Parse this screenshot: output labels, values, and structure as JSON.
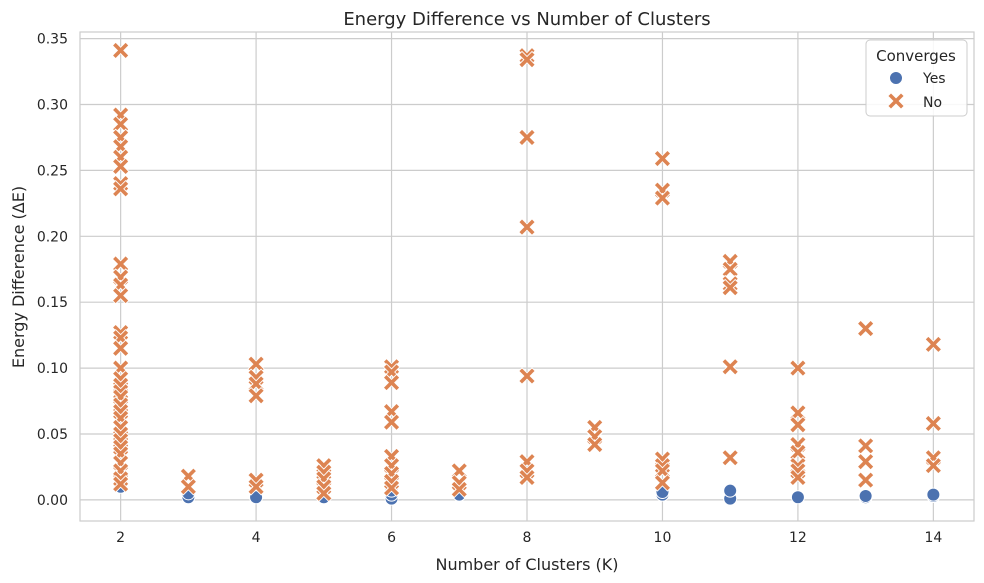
{
  "chart_data": {
    "type": "scatter",
    "title": "Energy Difference vs Number of Clusters",
    "xlabel": "Number of Clusters (K)",
    "ylabel": "Energy Difference (ΔE)",
    "xlim": [
      1.4,
      14.6
    ],
    "ylim": [
      -0.016,
      0.355
    ],
    "xticks": [
      2,
      4,
      6,
      8,
      10,
      12,
      14
    ],
    "yticks": [
      0.0,
      0.05,
      0.1,
      0.15,
      0.2,
      0.25,
      0.3,
      0.35
    ],
    "xtick_labels": [
      "2",
      "4",
      "6",
      "8",
      "10",
      "12",
      "14"
    ],
    "ytick_labels": [
      "0.00",
      "0.05",
      "0.10",
      "0.15",
      "0.20",
      "0.25",
      "0.30",
      "0.35"
    ],
    "grid": true,
    "legend": {
      "title": "Converges",
      "position": "top-right"
    },
    "series": [
      {
        "name": "Yes",
        "marker": "circle",
        "color": "#4c72b0",
        "points": [
          [
            2,
            0.01
          ],
          [
            3,
            0.002
          ],
          [
            3,
            0.005
          ],
          [
            4,
            0.002
          ],
          [
            5,
            0.002
          ],
          [
            6,
            0.001
          ],
          [
            6,
            0.004
          ],
          [
            6,
            0.007
          ],
          [
            7,
            0.004
          ],
          [
            10,
            0.004
          ],
          [
            10,
            0.006
          ],
          [
            11,
            0.001
          ],
          [
            11,
            0.007
          ],
          [
            12,
            0.002
          ],
          [
            13,
            0.002
          ],
          [
            13,
            0.003
          ],
          [
            14,
            0.003
          ],
          [
            14,
            0.004
          ]
        ]
      },
      {
        "name": "No",
        "marker": "x",
        "color": "#dd8452",
        "points": [
          [
            2,
            0.341
          ],
          [
            2,
            0.292
          ],
          [
            2,
            0.285
          ],
          [
            2,
            0.275
          ],
          [
            2,
            0.268
          ],
          [
            2,
            0.26
          ],
          [
            2,
            0.253
          ],
          [
            2,
            0.24
          ],
          [
            2,
            0.236
          ],
          [
            2,
            0.179
          ],
          [
            2,
            0.169
          ],
          [
            2,
            0.163
          ],
          [
            2,
            0.155
          ],
          [
            2,
            0.127
          ],
          [
            2,
            0.123
          ],
          [
            2,
            0.115
          ],
          [
            2,
            0.1
          ],
          [
            2,
            0.092
          ],
          [
            2,
            0.087
          ],
          [
            2,
            0.082
          ],
          [
            2,
            0.078
          ],
          [
            2,
            0.072
          ],
          [
            2,
            0.067
          ],
          [
            2,
            0.062
          ],
          [
            2,
            0.055
          ],
          [
            2,
            0.05
          ],
          [
            2,
            0.045
          ],
          [
            2,
            0.04
          ],
          [
            2,
            0.035
          ],
          [
            2,
            0.028
          ],
          [
            2,
            0.022
          ],
          [
            2,
            0.016
          ],
          [
            2,
            0.012
          ],
          [
            3,
            0.018
          ],
          [
            3,
            0.01
          ],
          [
            4,
            0.103
          ],
          [
            4,
            0.093
          ],
          [
            4,
            0.088
          ],
          [
            4,
            0.079
          ],
          [
            4,
            0.015
          ],
          [
            4,
            0.01
          ],
          [
            5,
            0.026
          ],
          [
            5,
            0.021
          ],
          [
            5,
            0.016
          ],
          [
            5,
            0.01
          ],
          [
            5,
            0.005
          ],
          [
            6,
            0.101
          ],
          [
            6,
            0.097
          ],
          [
            6,
            0.089
          ],
          [
            6,
            0.067
          ],
          [
            6,
            0.059
          ],
          [
            6,
            0.033
          ],
          [
            6,
            0.026
          ],
          [
            6,
            0.02
          ],
          [
            6,
            0.014
          ],
          [
            6,
            0.009
          ],
          [
            7,
            0.022
          ],
          [
            7,
            0.013
          ],
          [
            7,
            0.008
          ],
          [
            8,
            0.337
          ],
          [
            8,
            0.334
          ],
          [
            8,
            0.275
          ],
          [
            8,
            0.207
          ],
          [
            8,
            0.094
          ],
          [
            8,
            0.029
          ],
          [
            8,
            0.022
          ],
          [
            8,
            0.017
          ],
          [
            9,
            0.055
          ],
          [
            9,
            0.048
          ],
          [
            9,
            0.042
          ],
          [
            10,
            0.259
          ],
          [
            10,
            0.235
          ],
          [
            10,
            0.229
          ],
          [
            10,
            0.031
          ],
          [
            10,
            0.026
          ],
          [
            10,
            0.022
          ],
          [
            10,
            0.013
          ],
          [
            11,
            0.181
          ],
          [
            11,
            0.175
          ],
          [
            11,
            0.164
          ],
          [
            11,
            0.161
          ],
          [
            11,
            0.101
          ],
          [
            11,
            0.032
          ],
          [
            12,
            0.1
          ],
          [
            12,
            0.066
          ],
          [
            12,
            0.057
          ],
          [
            12,
            0.042
          ],
          [
            12,
            0.036
          ],
          [
            12,
            0.026
          ],
          [
            12,
            0.022
          ],
          [
            12,
            0.017
          ],
          [
            13,
            0.13
          ],
          [
            13,
            0.041
          ],
          [
            13,
            0.029
          ],
          [
            13,
            0.015
          ],
          [
            14,
            0.118
          ],
          [
            14,
            0.058
          ],
          [
            14,
            0.032
          ],
          [
            14,
            0.026
          ]
        ]
      }
    ]
  }
}
